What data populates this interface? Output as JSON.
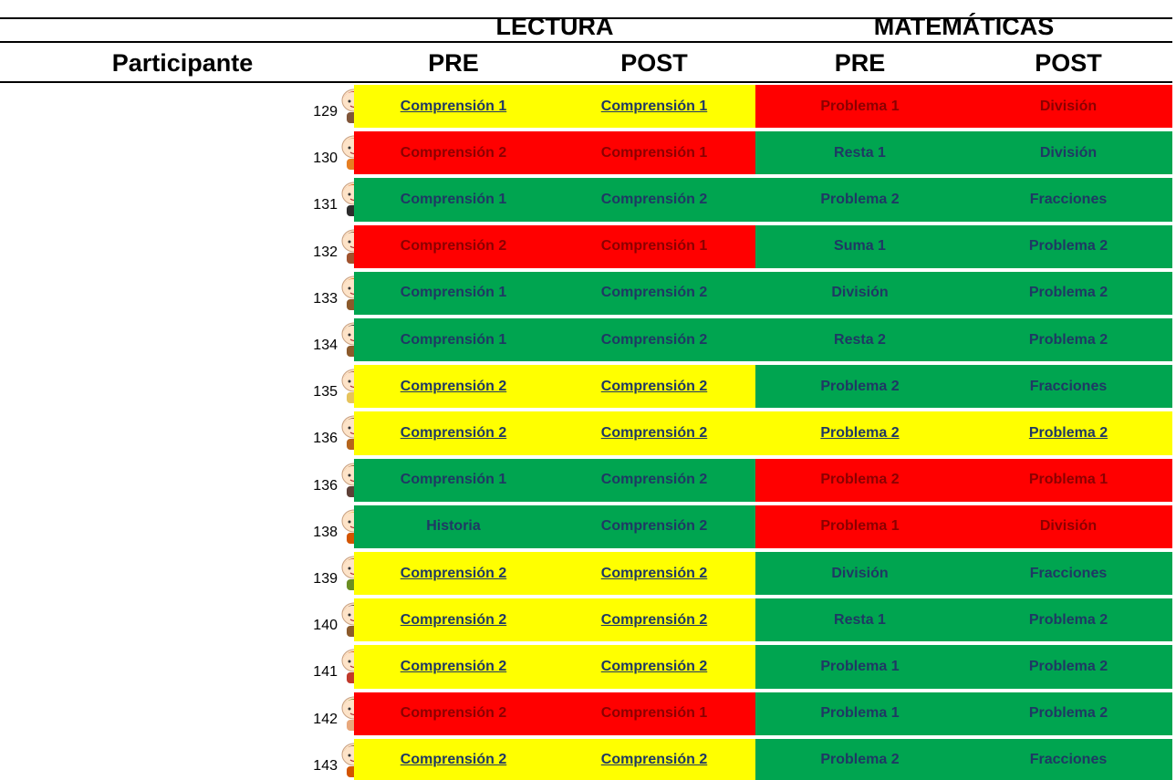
{
  "header": {
    "groups": [
      "LECTURA",
      "MATEMÁTICAS"
    ],
    "columns": [
      "Participante",
      "PRE",
      "POST",
      "PRE",
      "POST"
    ]
  },
  "table": {
    "rows": [
      {
        "participant": "129",
        "cells": [
          "Comprensión 1",
          "Comprensión 1",
          "Problema 1",
          "División"
        ],
        "colors": [
          "#ffff00",
          "#ffff00",
          "#ff0000",
          "#ff0000"
        ]
      },
      {
        "participant": "130",
        "cells": [
          "Comprensión 2",
          "Comprensión 1",
          "Resta 1",
          "División"
        ],
        "colors": [
          "#ff0000",
          "#ff0000",
          "#00a550",
          "#00a550"
        ]
      },
      {
        "participant": "131",
        "cells": [
          "Comprensión 1",
          "Comprensión 2",
          "Problema 2",
          "Fracciones"
        ],
        "colors": [
          "#00a550",
          "#00a550",
          "#00a550",
          "#00a550"
        ]
      },
      {
        "participant": "132",
        "cells": [
          "Comprensión 2",
          "Comprensión 1",
          "Suma 1",
          "Problema 2"
        ],
        "colors": [
          "#ff0000",
          "#ff0000",
          "#00a550",
          "#00a550"
        ]
      },
      {
        "participant": "133",
        "cells": [
          "Comprensión 1",
          "Comprensión 2",
          "División",
          "Problema 2"
        ],
        "colors": [
          "#00a550",
          "#00a550",
          "#00a550",
          "#00a550"
        ]
      },
      {
        "participant": "134",
        "cells": [
          "Comprensión 1",
          "Comprensión 2",
          "Resta 2",
          "Problema 2"
        ],
        "colors": [
          "#00a550",
          "#00a550",
          "#00a550",
          "#00a550"
        ]
      },
      {
        "participant": "135",
        "cells": [
          "Comprensión 2",
          "Comprensión 2",
          "Problema 2",
          "Fracciones"
        ],
        "colors": [
          "#ffff00",
          "#ffff00",
          "#00a550",
          "#00a550"
        ]
      },
      {
        "participant": "136",
        "cells": [
          "Comprensión 2",
          "Comprensión 2",
          "Problema 2",
          "Problema 2"
        ],
        "colors": [
          "#ffff00",
          "#ffff00",
          "#ffff00",
          "#ffff00"
        ]
      },
      {
        "participant": "136",
        "cells": [
          "Comprensión 1",
          "Comprensión 2",
          "Problema 2",
          "Problema 1"
        ],
        "colors": [
          "#00a550",
          "#00a550",
          "#ff0000",
          "#ff0000"
        ]
      },
      {
        "participant": "138",
        "cells": [
          "Historia",
          "Comprensión 2",
          "Problema 1",
          "División"
        ],
        "colors": [
          "#00a550",
          "#00a550",
          "#ff0000",
          "#ff0000"
        ]
      },
      {
        "participant": "139",
        "cells": [
          "Comprensión 2",
          "Comprensión 2",
          "División",
          "Fracciones"
        ],
        "colors": [
          "#ffff00",
          "#ffff00",
          "#00a550",
          "#00a550"
        ]
      },
      {
        "participant": "140",
        "cells": [
          "Comprensión 2",
          "Comprensión 2",
          "Resta 1",
          "Problema 2"
        ],
        "colors": [
          "#ffff00",
          "#ffff00",
          "#00a550",
          "#00a550"
        ]
      },
      {
        "participant": "141",
        "cells": [
          "Comprensión 2",
          "Comprensión 2",
          "Problema 1",
          "Problema 2"
        ],
        "colors": [
          "#ffff00",
          "#ffff00",
          "#00a550",
          "#00a550"
        ]
      },
      {
        "participant": "142",
        "cells": [
          "Comprensión 2",
          "Comprensión 1",
          "Problema 1",
          "Problema 2"
        ],
        "colors": [
          "#ff0000",
          "#ff0000",
          "#00a550",
          "#00a550"
        ]
      },
      {
        "participant": "143",
        "cells": [
          "Comprensión 2",
          "Comprensión 2",
          "Problema 2",
          "Fracciones"
        ],
        "colors": [
          "#ffff00",
          "#ffff00",
          "#00a550",
          "#00a550"
        ]
      }
    ]
  }
}
